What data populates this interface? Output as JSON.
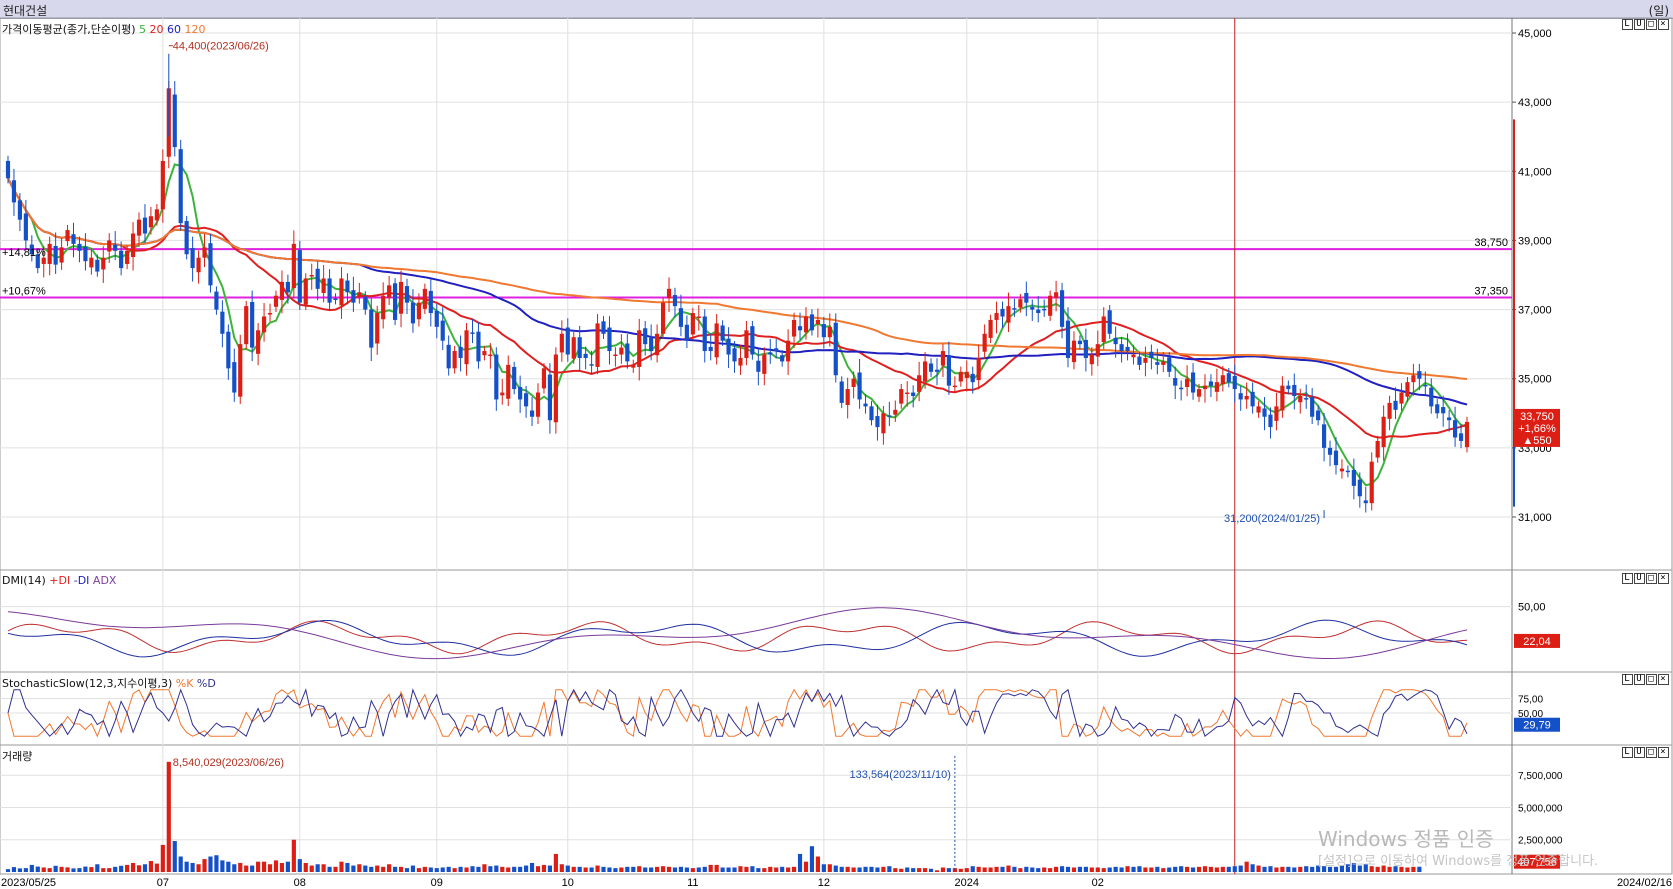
{
  "window": {
    "title": "현대건설",
    "unit": "(일)"
  },
  "price_panel": {
    "title": "가격이동평균(종가,단순이평)",
    "ma_periods": [
      "5",
      "20",
      "60",
      "120"
    ],
    "ma_colors": [
      "#3cb43c",
      "#e02020",
      "#2020c0",
      "#f07830"
    ],
    "y_ticks": [
      "45,000",
      "43,000",
      "41,000",
      "39,000",
      "37,000",
      "35,000",
      "33,000",
      "31,000"
    ],
    "high_annotation": "44,400(2023/06/26)",
    "low_annotation": "31,200(2024/01/25)",
    "hline_upper_label": "38,750",
    "hline_lower_label": "37,350",
    "hline_upper_pct": "+14,81%",
    "hline_lower_pct": "+10,67%",
    "last_price": "33,750",
    "last_change_pct": "+1,66%",
    "last_change": "▲550"
  },
  "dmi_panel": {
    "title": "DMI(14)",
    "labels": [
      "+DI",
      "-DI",
      "ADX"
    ],
    "y_ticks": [
      "50,00"
    ],
    "last_value": "22,04"
  },
  "stochastic_panel": {
    "title": "StochasticSlow(12,3,지수이평,3)",
    "labels": [
      "%K",
      "%D"
    ],
    "y_ticks": [
      "75,00",
      "50,00"
    ],
    "last_value": "29,79"
  },
  "volume_panel": {
    "title": "거래량",
    "y_ticks": [
      "7,500,000",
      "5,000,000",
      "2,500,000"
    ],
    "max_annotation": "8,540,029(2023/06/26)",
    "min_annotation": "133,564(2023/11/10)",
    "last_value": "407,756"
  },
  "x_axis": {
    "labels": [
      "2023/05/25",
      "07",
      "08",
      "09",
      "10",
      "11",
      "12",
      "2024",
      "02",
      "2024/02/16"
    ]
  },
  "watermark": {
    "line1": "Windows 정품 인증",
    "line2": "[설정]으로 이동하여 Windows를 정품 인증합니다."
  },
  "panel_controls": [
    "L",
    "U",
    "□",
    "×"
  ],
  "chart_data": {
    "type": "candlestick",
    "title": "",
    "y_range": [
      30500,
      45300
    ],
    "up_color": "#dc1e14",
    "down_color": "#1450c8",
    "highlight_lines": [
      38750,
      37350
    ],
    "ma_periods": [
      5,
      20,
      60,
      120
    ],
    "series_close": [
      40800,
      40100,
      39600,
      39000,
      38600,
      38200,
      38500,
      38900,
      38300,
      38800,
      39300,
      38900,
      38700,
      38400,
      38500,
      38100,
      38500,
      39000,
      38700,
      38200,
      38700,
      39200,
      39600,
      39200,
      39700,
      39900,
      41300,
      43400,
      41700,
      39500,
      38600,
      38200,
      38500,
      38800,
      37700,
      37000,
      36300,
      35300,
      34600,
      36000,
      37100,
      35900,
      36400,
      36800,
      36900,
      37400,
      37800,
      37500,
      38900,
      37200,
      37900,
      38000,
      37600,
      37900,
      37200,
      37300,
      37900,
      37500,
      37200,
      37500,
      37000,
      35900,
      36900,
      37400,
      37700,
      36700,
      37800,
      37200,
      36600,
      37200,
      37600,
      36900,
      36500,
      36100,
      35300,
      35800,
      35600,
      36400,
      36300,
      35500,
      35800,
      35700,
      34400,
      34600,
      35400,
      34700,
      34400,
      34200,
      33900,
      34600,
      35300,
      33800,
      35700,
      36300,
      35700,
      36200,
      35600,
      35600,
      35400,
      36600,
      36300,
      35800,
      35700,
      35900,
      35500,
      35400,
      36400,
      36000,
      35800,
      36300,
      37200,
      37600,
      37100,
      36500,
      36100,
      36900,
      36800,
      35800,
      35800,
      36600,
      36100,
      35700,
      35500,
      35600,
      36400,
      35700,
      35200,
      35700,
      35700,
      35800,
      35500,
      36100,
      36700,
      36400,
      36800,
      36400,
      36700,
      36200,
      36500,
      35100,
      34300,
      34700,
      35000,
      34400,
      34200,
      33800,
      33600,
      34000,
      33900,
      34100,
      34700,
      34600,
      34500,
      35100,
      35500,
      35200,
      35200,
      35800,
      34800,
      34800,
      35200,
      35200,
      34900,
      35600,
      36300,
      36700,
      36900,
      36800,
      37100,
      37000,
      37300,
      37200,
      37000,
      36900,
      37000,
      37400,
      37500,
      36500,
      35600,
      36100,
      36000,
      35600,
      35700,
      36000,
      36800,
      36300,
      36000,
      35800,
      35800,
      35700,
      35400,
      35600,
      35600,
      35400,
      35500,
      35200,
      34800,
      34700,
      35000,
      34600,
      34700,
      34800,
      34800,
      34900,
      35100,
      34900,
      34700,
      34400,
      34500,
      34200,
      34200,
      33900,
      33600,
      34200,
      34800,
      34700,
      34500,
      34500,
      34400,
      33900,
      33800,
      33000,
      32800,
      32500,
      32400,
      32300,
      31900,
      31600,
      31400,
      32600,
      33200,
      33900,
      34300,
      34100,
      34600,
      34900,
      35100,
      35000,
      34800,
      34200,
      34000,
      34000,
      33800,
      33300,
      33200,
      33750
    ],
    "series_volume": [
      0.22,
      0.38,
      0.28,
      0.3,
      0.55,
      0.42,
      0.35,
      0.3,
      0.48,
      0.4,
      0.36,
      0.28,
      0.3,
      0.42,
      0.38,
      0.6,
      0.3,
      0.3,
      0.4,
      0.48,
      0.55,
      0.7,
      0.52,
      0.6,
      0.85,
      0.65,
      2.1,
      8.54,
      2.4,
      1.2,
      0.8,
      0.7,
      0.6,
      1.0,
      1.2,
      1.3,
      0.9,
      0.8,
      0.6,
      0.7,
      0.5,
      0.5,
      0.8,
      0.8,
      0.6,
      0.9,
      0.7,
      0.8,
      2.5,
      1.0,
      0.7,
      0.5,
      0.6,
      0.6,
      0.4,
      0.4,
      0.8,
      0.7,
      0.5,
      0.6,
      0.5,
      0.4,
      0.5,
      0.4,
      0.6,
      0.4,
      0.4,
      0.3,
      0.5,
      0.3,
      0.4,
      0.35,
      0.3,
      0.35,
      0.4,
      0.3,
      0.4,
      0.35,
      0.45,
      0.4,
      0.6,
      0.45,
      0.5,
      0.4,
      0.35,
      0.4,
      0.4,
      0.5,
      0.7,
      0.45,
      0.55,
      0.5,
      1.4,
      0.6,
      0.5,
      0.4,
      0.4,
      0.35,
      0.35,
      0.5,
      0.4,
      0.35,
      0.3,
      0.35,
      0.4,
      0.4,
      0.45,
      0.35,
      0.35,
      0.4,
      0.45,
      0.4,
      0.35,
      0.4,
      0.35,
      0.3,
      0.35,
      0.4,
      0.55,
      0.55,
      0.35,
      0.35,
      0.35,
      0.45,
      0.4,
      0.45,
      0.3,
      0.3,
      0.4,
      0.35,
      0.4,
      0.35,
      0.4,
      1.4,
      0.8,
      2.0,
      1.2,
      0.6,
      0.6,
      0.5,
      0.4,
      0.4,
      0.35,
      0.35,
      0.4,
      0.4,
      0.35,
      0.4,
      0.45,
      0.3,
      0.25,
      0.35,
      0.3,
      0.3,
      0.3,
      0.25,
      0.134,
      0.35,
      0.3,
      0.3,
      0.25,
      0.3,
      0.45,
      0.4,
      0.35,
      0.35,
      0.4,
      0.4,
      0.5,
      0.4,
      0.3,
      0.4,
      0.35,
      0.3,
      0.35,
      0.3,
      0.4,
      0.45,
      0.4,
      0.35,
      0.4,
      0.4,
      0.35,
      0.35,
      0.3,
      0.35,
      0.4,
      0.35,
      0.45,
      0.4,
      0.45,
      0.35,
      0.35,
      0.4,
      0.3,
      0.35,
      0.4,
      0.45,
      0.4,
      0.35,
      0.4,
      0.45,
      0.4,
      0.35,
      0.4,
      0.4,
      0.45,
      0.5,
      0.8,
      0.6,
      0.5,
      0.4,
      0.45,
      0.35,
      0.4,
      0.4,
      0.35,
      0.4,
      0.45,
      0.4,
      0.5,
      0.45,
      0.4,
      0.4,
      0.5,
      0.6,
      0.7,
      0.5,
      0.6,
      0.45,
      0.4,
      0.5,
      0.4,
      0.45,
      0.4,
      0.35,
      0.4,
      0.41
    ]
  }
}
